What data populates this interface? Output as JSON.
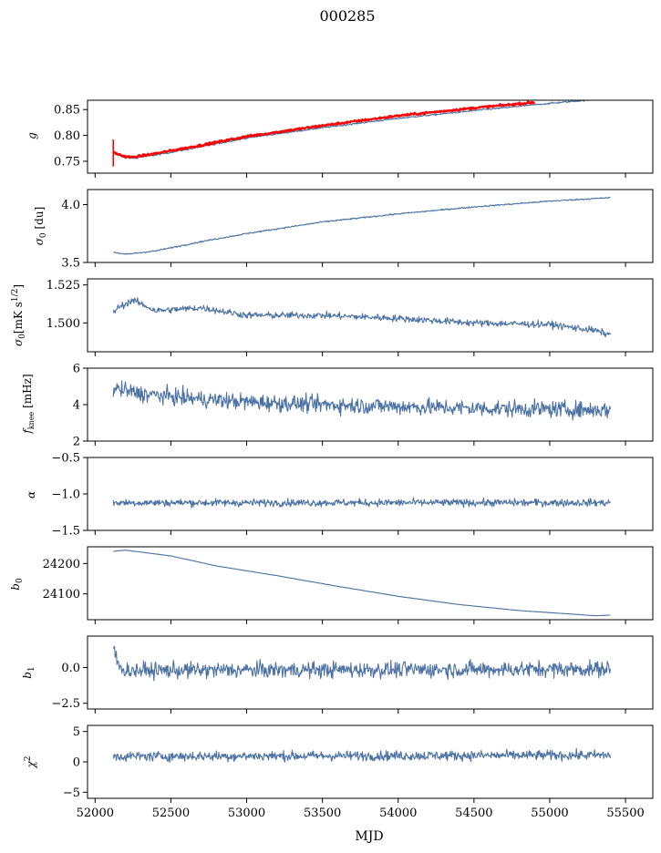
{
  "figure_title": "000285",
  "x_axis": {
    "label": "MJD",
    "range": [
      51950,
      55680
    ],
    "ticks": [
      52000,
      52500,
      53000,
      53500,
      54000,
      54500,
      55000,
      55500
    ],
    "tick_labels": [
      "52000",
      "52500",
      "53000",
      "53500",
      "54000",
      "54500",
      "55000",
      "55500"
    ]
  },
  "chart_data": [
    {
      "type": "line",
      "ylabel": "g",
      "ylim": [
        0.727,
        0.868
      ],
      "yticks": [
        0.75,
        0.8,
        0.85
      ],
      "ytick_labels": [
        "0.75",
        "0.80",
        "0.85"
      ],
      "series": [
        {
          "color": "#4c72a4",
          "model": "trend",
          "x": [
            52120,
            52200,
            52250,
            52400,
            52700,
            53000,
            53500,
            54000,
            54500,
            55000,
            55400
          ],
          "y": [
            0.765,
            0.757,
            0.756,
            0.762,
            0.778,
            0.795,
            0.815,
            0.833,
            0.848,
            0.862,
            0.872
          ],
          "noise": 0.0015
        },
        {
          "color": "#ff0000",
          "model": "trend",
          "x": [
            52120,
            52200,
            52250,
            52400,
            52700,
            53000,
            53500,
            54000,
            54500,
            54900
          ],
          "y": [
            0.767,
            0.759,
            0.758,
            0.765,
            0.781,
            0.798,
            0.819,
            0.838,
            0.853,
            0.864
          ],
          "noise": 0.0022,
          "spikes": [
            {
              "x": 52120,
              "low": 0.74,
              "high": 0.792
            }
          ]
        }
      ]
    },
    {
      "type": "line",
      "ylabel": "σ₀ [du]",
      "ylim": [
        3.5,
        4.13
      ],
      "yticks": [
        3.5,
        4.0
      ],
      "ytick_labels": [
        "3.5",
        "4.0"
      ],
      "series": [
        {
          "color": "#4c72a4",
          "model": "trend",
          "x": [
            52120,
            52200,
            52400,
            52700,
            53000,
            53500,
            54000,
            54500,
            55000,
            55400
          ],
          "y": [
            3.59,
            3.57,
            3.6,
            3.68,
            3.75,
            3.85,
            3.92,
            3.98,
            4.03,
            4.06
          ],
          "noise": 0.006
        }
      ]
    },
    {
      "type": "line",
      "ylabel": "σ₀[mK s^1/2]",
      "ylim": [
        1.481,
        1.529
      ],
      "yticks": [
        1.5,
        1.525
      ],
      "ytick_labels": [
        "1.500",
        "1.525"
      ],
      "series": [
        {
          "color": "#4c72a4",
          "model": "trend",
          "x": [
            52120,
            52150,
            52250,
            52400,
            52700,
            53000,
            53500,
            54000,
            54500,
            55000,
            55300,
            55400
          ],
          "y": [
            1.507,
            1.51,
            1.515,
            1.508,
            1.51,
            1.505,
            1.505,
            1.503,
            1.5,
            1.499,
            1.495,
            1.492
          ],
          "noise": 0.0022
        }
      ]
    },
    {
      "type": "line",
      "ylabel": "f_knee [mHz]",
      "ylim": [
        2,
        6
      ],
      "yticks": [
        2,
        4,
        6
      ],
      "ytick_labels": [
        "2",
        "4",
        "6"
      ],
      "series": [
        {
          "color": "#4c72a4",
          "model": "trend",
          "x": [
            52120,
            52300,
            52700,
            53000,
            53500,
            54000,
            54500,
            55000,
            55400
          ],
          "y": [
            4.9,
            4.6,
            4.3,
            4.15,
            4.0,
            3.9,
            3.8,
            3.75,
            3.7
          ],
          "noise": 0.45
        }
      ]
    },
    {
      "type": "line",
      "ylabel": "α",
      "ylim": [
        -1.5,
        -0.5
      ],
      "yticks": [
        -1.5,
        -1.0,
        -0.5
      ],
      "ytick_labels": [
        "−1.5",
        "−1.0",
        "−0.5"
      ],
      "series": [
        {
          "color": "#4c72a4",
          "model": "trend",
          "x": [
            52120,
            55400
          ],
          "y": [
            -1.12,
            -1.12
          ],
          "noise": 0.05
        }
      ]
    },
    {
      "type": "line",
      "ylabel": "b₀",
      "ylim": [
        24015,
        24255
      ],
      "yticks": [
        24100,
        24200
      ],
      "ytick_labels": [
        "24100",
        "24200"
      ],
      "series": [
        {
          "color": "#4c72a4",
          "model": "trend",
          "x": [
            52120,
            52200,
            52500,
            52800,
            53200,
            53600,
            54000,
            54400,
            54800,
            55100,
            55300,
            55400
          ],
          "y": [
            24240,
            24244,
            24225,
            24192,
            24160,
            24125,
            24092,
            24065,
            24045,
            24035,
            24028,
            24030
          ],
          "noise": 0.5
        }
      ]
    },
    {
      "type": "line",
      "ylabel": "b₁",
      "ylim": [
        -2.9,
        2.2
      ],
      "yticks": [
        -2.5,
        0.0
      ],
      "ytick_labels": [
        "−2.5",
        "0.0"
      ],
      "series": [
        {
          "color": "#4c72a4",
          "model": "trend",
          "x": [
            52120,
            52150,
            52200,
            55400
          ],
          "y": [
            1.6,
            0.2,
            -0.2,
            -0.1
          ],
          "noise": 0.55
        }
      ]
    },
    {
      "type": "line",
      "ylabel": "χ²",
      "ylim": [
        -6,
        6
      ],
      "yticks": [
        -5,
        0,
        5
      ],
      "ytick_labels": [
        "−5",
        "0",
        "5"
      ],
      "series": [
        {
          "color": "#4c72a4",
          "model": "trend",
          "x": [
            52120,
            55400
          ],
          "y": [
            0.9,
            1.1
          ],
          "noise": 0.8
        }
      ]
    }
  ]
}
